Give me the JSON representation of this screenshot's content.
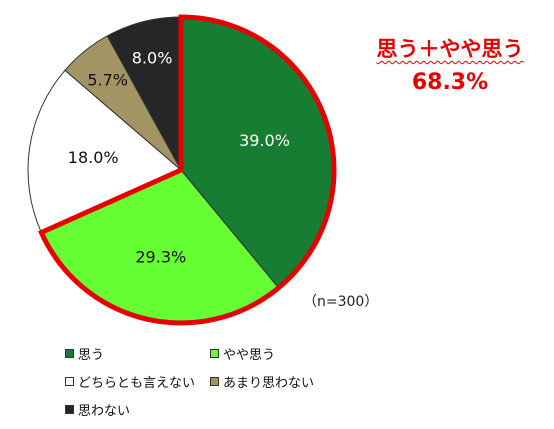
{
  "chart_data": {
    "type": "pie",
    "slices": [
      {
        "label": "思う",
        "value": 39.0,
        "value_label": "39.0%",
        "color": "#177d33",
        "label_color": "#ffffff"
      },
      {
        "label": "やや思う",
        "value": 29.3,
        "value_label": "29.3%",
        "color": "#66ff33",
        "label_color": "#111111"
      },
      {
        "label": "どちらとも言えない",
        "value": 18.0,
        "value_label": "18.0%",
        "color": "#ffffff",
        "label_color": "#111111"
      },
      {
        "label": "あまり思わない",
        "value": 5.7,
        "value_label": "5.7%",
        "color": "#a39563",
        "label_color": "#111111"
      },
      {
        "label": "思わない",
        "value": 8.0,
        "value_label": "8.0%",
        "color": "#262626",
        "label_color": "#ffffff"
      }
    ],
    "start": "12 o'clock",
    "direction": "clockwise",
    "highlight": {
      "slices": [
        "思う",
        "やや思う"
      ],
      "outline_color": "#e60000",
      "line1": "思う＋やや思う",
      "line2": "68.3%"
    },
    "note": "（n=300）",
    "legend_position": "bottom-left"
  }
}
